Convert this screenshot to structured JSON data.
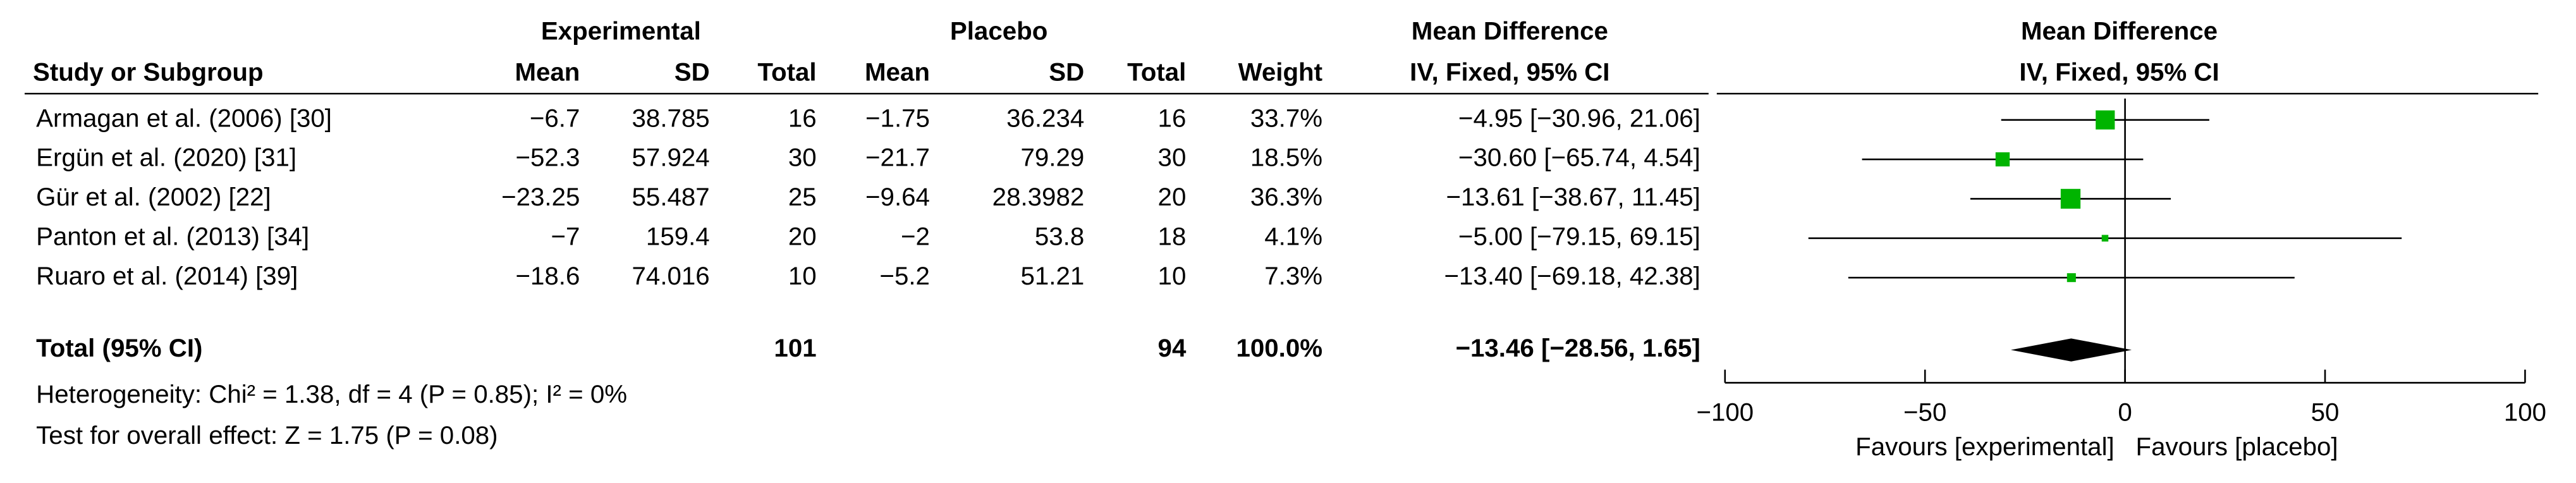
{
  "chart_data": {
    "type": "forest",
    "group_headers": {
      "experimental": "Experimental",
      "placebo": "Placebo",
      "md_table": "Mean Difference",
      "md_plot": "Mean Difference"
    },
    "columns": {
      "study": "Study or Subgroup",
      "exp_mean": "Mean",
      "exp_sd": "SD",
      "exp_total": "Total",
      "pl_mean": "Mean",
      "pl_sd": "SD",
      "pl_total": "Total",
      "weight": "Weight",
      "ci": "IV, Fixed, 95% CI",
      "plot": "IV, Fixed, 95% CI"
    },
    "studies": [
      "Armagan et al. (2006) [30]",
      "Ergün et al. (2020) [31]",
      "Gür et al. (2002) [22]",
      "Panton et al. (2013) [34]",
      "Ruaro et al. (2014) [39]"
    ],
    "exp_mean": [
      "−6.7",
      "−52.3",
      "−23.25",
      "−7",
      "−18.6"
    ],
    "exp_sd": [
      38.785,
      57.924,
      55.487,
      159.4,
      74.016
    ],
    "exp_total": [
      16,
      30,
      25,
      20,
      10
    ],
    "pl_mean": [
      "−1.75",
      "−21.7",
      "−9.64",
      "−2",
      "−5.2"
    ],
    "pl_sd": [
      36.234,
      79.29,
      28.3982,
      53.8,
      51.21
    ],
    "pl_total": [
      16,
      30,
      20,
      18,
      10
    ],
    "weights": [
      33.7,
      18.5,
      36.3,
      4.1,
      7.3
    ],
    "weight_labels": [
      "33.7%",
      "18.5%",
      "36.3%",
      "4.1%",
      "7.3%"
    ],
    "md": [
      -4.95,
      -30.6,
      -13.61,
      -5.0,
      -13.4
    ],
    "ci_low": [
      -30.96,
      -65.74,
      -38.67,
      -79.15,
      -69.18
    ],
    "ci_high": [
      21.06,
      4.54,
      11.45,
      69.15,
      42.38
    ],
    "ci_labels": [
      "−4.95 [−30.96, 21.06]",
      "−30.60 [−65.74, 4.54]",
      "−13.61 [−38.67, 11.45]",
      "−5.00 [−79.15, 69.15]",
      "−13.40 [−69.18, 42.38]"
    ],
    "color": "#00b400",
    "total": {
      "label": "Total (95% CI)",
      "exp_total": 101,
      "pl_total": 94,
      "weight_label": "100.0%",
      "md": -13.46,
      "ci_low": -28.56,
      "ci_high": 1.65,
      "ci_label": "−13.46 [−28.56, 1.65]"
    },
    "heterogeneity": "Heterogeneity: Chi² = 1.38, df = 4 (P = 0.85); I² = 0%",
    "overall_test": "Test for overall effect: Z = 1.75 (P = 0.08)",
    "xlim": [
      -100,
      100
    ],
    "xticks": [
      {
        "value": -100,
        "label": "−100"
      },
      {
        "value": -50,
        "label": "−50"
      },
      0,
      50,
      100
    ],
    "favours_left": "Favours [experimental]",
    "favours_right": "Favours [placebo]"
  }
}
